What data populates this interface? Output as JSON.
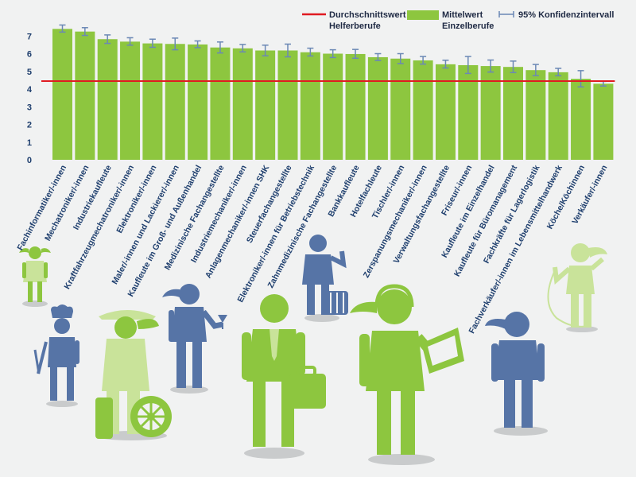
{
  "chart_data": {
    "type": "bar",
    "categories": [
      "Fachinformatiker/-innen",
      "Mechatroniker/-innen",
      "Industriekaufleute",
      "Kraftfahrzeugmechatroniker/-innen",
      "Elektroniker/-innen",
      "Maler/-innen und Lackierer/-innen",
      "Kaufleute im Groß- und Außenhandel",
      "Medizinische Fachangestellte",
      "Industriemechaniker/-innen",
      "Anlagenmechaniker/-innen SHK",
      "Steuerfachangestellte",
      "Elektroniker/-innen für Betriebstechnik",
      "Zahnmedizinische Fachangestellte",
      "Bankkaufleute",
      "Hotelfachleute",
      "Tischler/-innen",
      "Zerspanungsmechaniker/-innen",
      "Verwaltungsfachangestellte",
      "Friseur/-innen",
      "Kaufleute im Einzelhandel",
      "Kaufleute für Büromanagement",
      "Fachkräfte für Lagerlogistik",
      "Fachverkäufer/-innen im Lebensmittelhandwerk",
      "Köche/Köchinnen",
      "Verkäufer/-innen"
    ],
    "series": [
      {
        "name": "Mittelwert Einzelberufe",
        "values": [
          7.4,
          7.25,
          6.82,
          6.68,
          6.58,
          6.55,
          6.52,
          6.35,
          6.3,
          6.18,
          6.18,
          6.08,
          6.0,
          5.98,
          5.8,
          5.72,
          5.62,
          5.4,
          5.35,
          5.3,
          5.25,
          5.07,
          4.95,
          4.58,
          4.3
        ],
        "ci_low": [
          7.22,
          7.03,
          6.58,
          6.48,
          6.36,
          6.22,
          6.34,
          6.04,
          6.1,
          5.88,
          5.82,
          5.87,
          5.78,
          5.74,
          5.61,
          5.44,
          5.41,
          5.19,
          4.88,
          4.96,
          4.93,
          4.76,
          4.75,
          4.12,
          4.17
        ],
        "ci_high": [
          7.62,
          7.47,
          7.06,
          6.9,
          6.82,
          6.88,
          6.72,
          6.66,
          6.52,
          6.48,
          6.54,
          6.31,
          6.22,
          6.24,
          6.0,
          6.0,
          5.84,
          5.63,
          5.84,
          5.64,
          5.58,
          5.39,
          5.17,
          5.04,
          4.43
        ]
      }
    ],
    "reference_line": {
      "name": "Durchschnittswert Helferberufe",
      "value": 4.45
    },
    "ylim": [
      0,
      8
    ],
    "yticks": [
      "0",
      "1",
      "2",
      "3",
      "4",
      "5",
      "6",
      "7"
    ],
    "legend": {
      "position": "top-right",
      "items": [
        {
          "line1": "Durchschnittswert",
          "line2": "Helferberufe",
          "kind": "line"
        },
        {
          "line1": "Mittelwert",
          "line2": "Einzelberufe",
          "kind": "bar"
        },
        {
          "line1": "95% Konfidenzintervall",
          "line2": "",
          "kind": "errorbar"
        }
      ]
    },
    "grid": false,
    "title": "",
    "xlabel": "",
    "ylabel": ""
  },
  "colors": {
    "bar": "#8dc63f",
    "reference_line": "#e01b22",
    "errorbar": "#6b88b5",
    "axis": "#1f3f6e",
    "background": "#f1f2f2"
  },
  "illustration": {
    "figures": [
      "waitress-figure",
      "chef-figure",
      "tire-mechanic-figure",
      "hotel-waiter-figure",
      "businessman-figure",
      "plumber-figure",
      "call-center-figure",
      "nurse-figure",
      "hairdresser-figure"
    ]
  }
}
